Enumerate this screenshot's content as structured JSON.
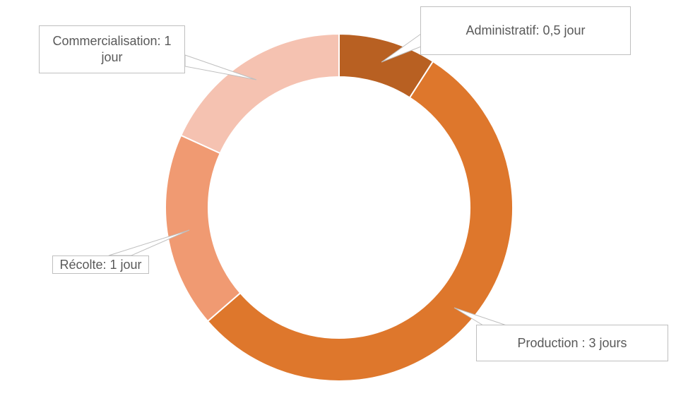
{
  "chart_data": {
    "type": "pie",
    "donut": true,
    "unit": "jours",
    "slices": [
      {
        "label": "Administratif: 0,5 jour",
        "value": 0.5,
        "color": "#B86022"
      },
      {
        "label": "Production : 3 jours",
        "value": 3,
        "color": "#DE772C"
      },
      {
        "label": "Récolte: 1 jour",
        "value": 1,
        "color": "#F09A72"
      },
      {
        "label": "Commercialisation: 1 jour",
        "value": 1,
        "color": "#F5C2B1"
      }
    ],
    "legend": "none",
    "data_labels": "callouts"
  }
}
